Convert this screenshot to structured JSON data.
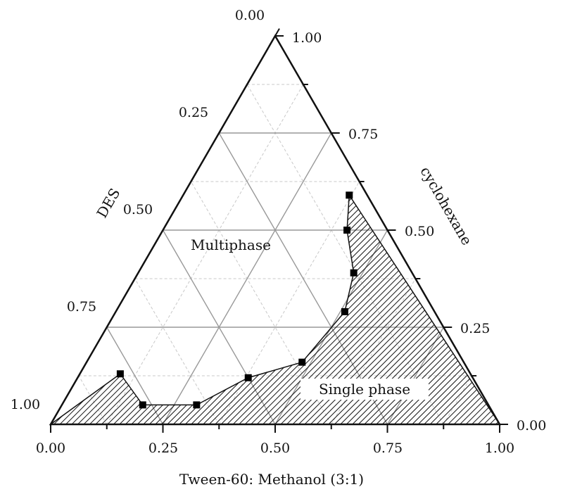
{
  "chart_data": {
    "type": "ternary",
    "axes": {
      "bottom": {
        "label": "Tween-60: Methanol (3:1)",
        "ticks": [
          "0.00",
          "0.25",
          "0.50",
          "0.75",
          "1.00"
        ]
      },
      "left": {
        "label": "DES",
        "ticks": [
          "0.00",
          "0.25",
          "0.50",
          "0.75",
          "1.00"
        ]
      },
      "right": {
        "label": "cyclohexane",
        "ticks": [
          "0.00",
          "0.25",
          "0.50",
          "0.75",
          "1.00"
        ]
      }
    },
    "regions": {
      "multiphase": "Multiphase",
      "single": "Single phase"
    },
    "grid": true,
    "boundary": [
      {
        "tween": 0.0,
        "cyclohexane": 0.0,
        "des": 1.0
      },
      {
        "tween": 0.09,
        "cyclohexane": 0.13,
        "des": 0.78
      },
      {
        "tween": 0.18,
        "cyclohexane": 0.05,
        "des": 0.77
      },
      {
        "tween": 0.3,
        "cyclohexane": 0.05,
        "des": 0.65
      },
      {
        "tween": 0.38,
        "cyclohexane": 0.12,
        "des": 0.5
      },
      {
        "tween": 0.48,
        "cyclohexane": 0.16,
        "des": 0.36
      },
      {
        "tween": 0.51,
        "cyclohexane": 0.29,
        "des": 0.2
      },
      {
        "tween": 0.48,
        "cyclohexane": 0.39,
        "des": 0.13
      },
      {
        "tween": 0.41,
        "cyclohexane": 0.5,
        "des": 0.09
      },
      {
        "tween": 0.37,
        "cyclohexane": 0.59,
        "des": 0.04
      },
      {
        "tween": 1.0,
        "cyclohexane": 0.0,
        "des": 0.0
      }
    ],
    "markers": [
      {
        "tween": 0.09,
        "cyclohexane": 0.13,
        "des": 0.78
      },
      {
        "tween": 0.18,
        "cyclohexane": 0.05,
        "des": 0.77
      },
      {
        "tween": 0.3,
        "cyclohexane": 0.05,
        "des": 0.65
      },
      {
        "tween": 0.38,
        "cyclohexane": 0.12,
        "des": 0.5
      },
      {
        "tween": 0.48,
        "cyclohexane": 0.16,
        "des": 0.36
      },
      {
        "tween": 0.51,
        "cyclohexane": 0.29,
        "des": 0.2
      },
      {
        "tween": 0.48,
        "cyclohexane": 0.39,
        "des": 0.13
      },
      {
        "tween": 0.41,
        "cyclohexane": 0.5,
        "des": 0.09
      },
      {
        "tween": 0.37,
        "cyclohexane": 0.59,
        "des": 0.04
      }
    ],
    "colors": {
      "frame": "#111111",
      "grid_major": "#999999",
      "grid_minor": "#c8c8c8",
      "hatch": "#111111",
      "marker": "#000000"
    }
  }
}
